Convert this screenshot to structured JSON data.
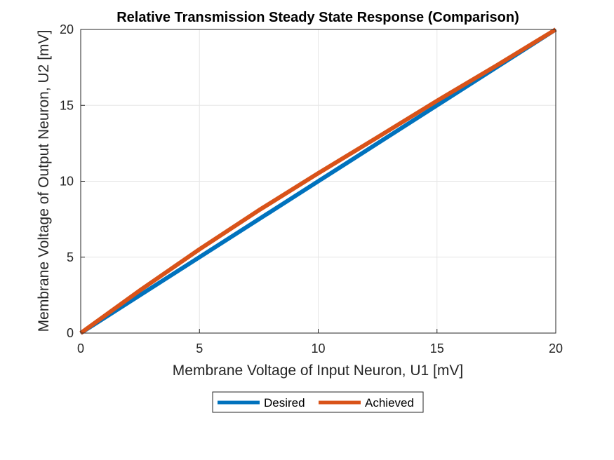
{
  "chart_data": {
    "type": "line",
    "title": "Relative Transmission Steady State Response (Comparison)",
    "xlabel": "Membrane Voltage of Input Neuron, U1 [mV]",
    "ylabel": "Membrane Voltage of Output Neuron, U2 [mV]",
    "xlim": [
      0,
      20
    ],
    "ylim": [
      0,
      20
    ],
    "xticks": [
      "0",
      "5",
      "10",
      "15",
      "20"
    ],
    "yticks": [
      "0",
      "5",
      "10",
      "15",
      "20"
    ],
    "grid": true,
    "legend_position": "bottom",
    "series": [
      {
        "name": "Desired",
        "color": "#0072BD",
        "x": [
          0,
          2.5,
          5,
          7.5,
          10,
          12.5,
          15,
          17.5,
          20
        ],
        "y": [
          0,
          2.5,
          5,
          7.5,
          10,
          12.5,
          15,
          17.5,
          20
        ]
      },
      {
        "name": "Achieved",
        "color": "#D95319",
        "x": [
          0,
          2.5,
          5,
          7.5,
          10,
          12.5,
          15,
          17.5,
          20
        ],
        "y": [
          0,
          2.82,
          5.52,
          8.09,
          10.53,
          12.9,
          15.3,
          17.62,
          20
        ]
      }
    ]
  }
}
